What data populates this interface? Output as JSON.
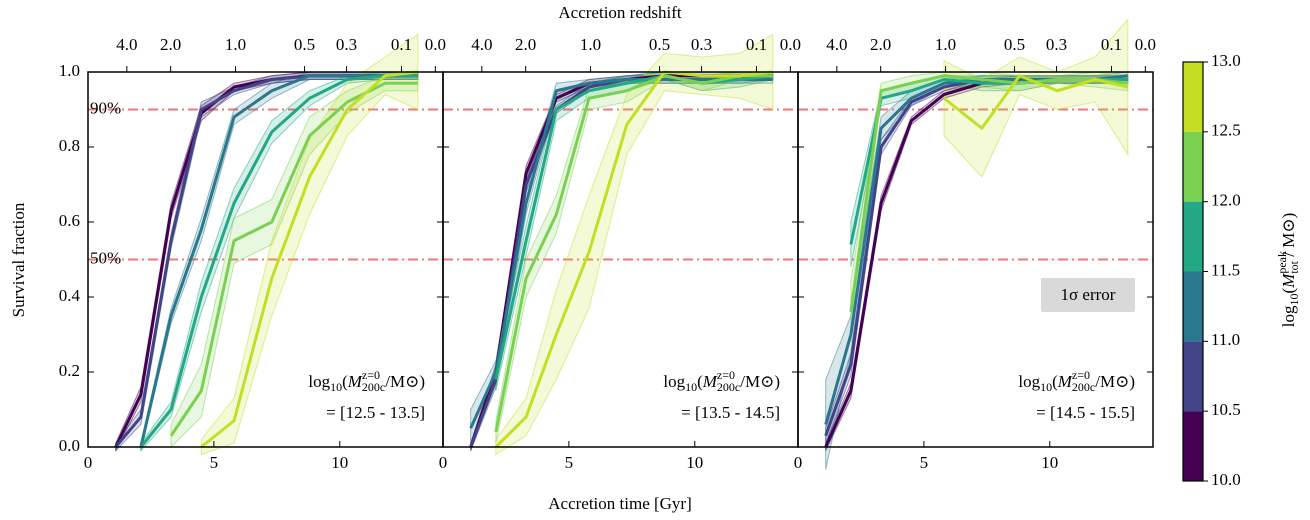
{
  "chart_data": [
    {
      "type": "line",
      "xlim": [
        0,
        14.1
      ],
      "ylim": [
        0,
        1
      ],
      "xticks": [
        0,
        5,
        10
      ],
      "yticks": [
        {
          "value": 0,
          "label": "0.0"
        },
        {
          "value": 0.2,
          "label": "0.2"
        },
        {
          "value": 0.4,
          "label": "0.4"
        },
        {
          "value": 0.6,
          "label": "0.6"
        },
        {
          "value": 0.8,
          "label": "0.8"
        },
        {
          "value": 1,
          "label": "1.0"
        }
      ],
      "x": [
        1.1,
        2.1,
        3.3,
        4.5,
        5.8,
        7.3,
        8.8,
        10.3,
        11.8,
        13.1
      ],
      "annotation": "= [12.5 - 13.5]",
      "series": [
        {
          "color": "#440154",
          "values": [
            0,
            0.14,
            0.63,
            0.89,
            0.96,
            0.98,
            0.99,
            0.99,
            0.99,
            0.99
          ],
          "error": [
            0.01,
            0.02,
            0.02,
            0.02,
            0.01,
            0.01,
            0.01,
            0.01,
            0.01,
            0.01
          ]
        },
        {
          "color": "#414487",
          "values": [
            0,
            0.08,
            0.55,
            0.9,
            0.95,
            0.98,
            0.99,
            0.99,
            0.99,
            0.99
          ],
          "error": [
            0.01,
            0.02,
            0.02,
            0.02,
            0.01,
            0.01,
            0.01,
            0.01,
            0.01,
            0.01
          ]
        },
        {
          "color": "#2a788e",
          "values": [
            null,
            0,
            0.35,
            0.58,
            0.88,
            0.95,
            0.99,
            0.99,
            0.99,
            0.99
          ],
          "error": [
            null,
            0.01,
            0.02,
            0.03,
            0.02,
            0.02,
            0.01,
            0.01,
            0.01,
            0.01
          ]
        },
        {
          "color": "#22a884",
          "values": [
            null,
            0,
            0.1,
            0.4,
            0.65,
            0.84,
            0.93,
            0.98,
            0.99,
            0.99
          ],
          "error": [
            null,
            0.01,
            0.02,
            0.04,
            0.04,
            0.03,
            0.02,
            0.01,
            0.01,
            0.01
          ]
        },
        {
          "color": "#7ad151",
          "values": [
            null,
            null,
            0.03,
            0.15,
            0.55,
            0.6,
            0.83,
            0.92,
            0.97,
            0.97
          ],
          "error": [
            null,
            null,
            0.03,
            0.07,
            0.06,
            0.06,
            0.05,
            0.03,
            0.02,
            0.02
          ]
        },
        {
          "color": "#c2df23",
          "values": [
            null,
            null,
            null,
            0,
            0.07,
            0.45,
            0.72,
            0.9,
            0.99,
            1
          ],
          "error": [
            null,
            null,
            null,
            0.02,
            0.06,
            0.1,
            0.1,
            0.07,
            0.05,
            0.1
          ]
        }
      ]
    },
    {
      "type": "line",
      "xlim": [
        0,
        14.1
      ],
      "ylim": [
        0,
        1
      ],
      "xticks": [
        0,
        5,
        10
      ],
      "x": [
        1.1,
        2.1,
        3.3,
        4.5,
        5.8,
        7.3,
        8.8,
        10.3,
        11.8,
        13.1
      ],
      "annotation": "= [13.5 - 14.5]",
      "series": [
        {
          "color": "#440154",
          "values": [
            0,
            0.2,
            0.73,
            0.93,
            0.97,
            0.98,
            0.99,
            0.99,
            0.99,
            0.99
          ],
          "error": [
            0.01,
            0.02,
            0.02,
            0.01,
            0.01,
            0.01,
            0.01,
            0.01,
            0.01,
            0.01
          ]
        },
        {
          "color": "#414487",
          "values": [
            0,
            0.18,
            0.7,
            0.9,
            0.96,
            0.98,
            0.98,
            0.98,
            0.98,
            0.99
          ],
          "error": [
            0.01,
            0.02,
            0.02,
            0.01,
            0.01,
            0.01,
            0.01,
            0.01,
            0.01,
            0.01
          ]
        },
        {
          "color": "#2a788e",
          "values": [
            0.05,
            0.2,
            0.65,
            0.95,
            0.97,
            0.98,
            0.98,
            0.98,
            0.98,
            0.98
          ],
          "error": [
            0.05,
            0.03,
            0.03,
            0.02,
            0.01,
            0.01,
            0.01,
            0.01,
            0.01,
            0.01
          ]
        },
        {
          "color": "#22a884",
          "values": [
            null,
            0.18,
            0.55,
            0.9,
            0.95,
            0.97,
            0.99,
            0.97,
            0.98,
            0.99
          ],
          "error": [
            null,
            0.03,
            0.04,
            0.03,
            0.02,
            0.02,
            0.01,
            0.02,
            0.02,
            0.01
          ]
        },
        {
          "color": "#7ad151",
          "values": [
            null,
            0.04,
            0.45,
            0.62,
            0.93,
            0.95,
            0.99,
            0.97,
            0.99,
            0.99
          ],
          "error": [
            null,
            0.03,
            0.05,
            0.05,
            0.03,
            0.03,
            0.01,
            0.02,
            0.01,
            0.01
          ]
        },
        {
          "color": "#c2df23",
          "values": [
            null,
            0,
            0.08,
            0.3,
            0.52,
            0.86,
            1,
            0.99,
            0.99,
            1
          ],
          "error": [
            null,
            0.02,
            0.05,
            0.12,
            0.15,
            0.08,
            0.05,
            0.05,
            0.06,
            0.1
          ]
        }
      ]
    },
    {
      "type": "line",
      "xlim": [
        0,
        14.1
      ],
      "ylim": [
        0,
        1
      ],
      "xticks": [
        0,
        5,
        10
      ],
      "x": [
        1.1,
        2.1,
        3.3,
        4.5,
        5.8,
        7.3,
        8.8,
        10.3,
        11.8,
        13.1
      ],
      "annotation": "= [14.5 - 15.5]",
      "series": [
        {
          "color": "#440154",
          "values": [
            0,
            0.15,
            0.65,
            0.87,
            0.94,
            0.97,
            0.98,
            0.98,
            0.98,
            0.98
          ],
          "error": [
            0.01,
            0.02,
            0.02,
            0.01,
            0.01,
            0.01,
            0.01,
            0.01,
            0.01,
            0.01
          ]
        },
        {
          "color": "#414487",
          "values": [
            0.03,
            0.22,
            0.8,
            0.92,
            0.96,
            0.98,
            0.98,
            0.98,
            0.98,
            0.98
          ],
          "error": [
            0.02,
            0.03,
            0.02,
            0.01,
            0.01,
            0.01,
            0.01,
            0.01,
            0.01,
            0.01
          ]
        },
        {
          "color": "#2a788e",
          "values": [
            0.06,
            0.3,
            0.85,
            0.93,
            0.97,
            0.98,
            0.98,
            0.98,
            0.98,
            0.99
          ],
          "error": [
            0.12,
            0.05,
            0.03,
            0.02,
            0.01,
            0.01,
            0.01,
            0.01,
            0.01,
            0.01
          ]
        },
        {
          "color": "#22a884",
          "values": [
            null,
            0.54,
            0.93,
            0.95,
            0.98,
            0.97,
            0.97,
            0.98,
            0.98,
            0.98
          ],
          "error": [
            null,
            0.06,
            0.02,
            0.02,
            0.01,
            0.02,
            0.02,
            0.01,
            0.01,
            0.01
          ]
        },
        {
          "color": "#7ad151",
          "values": [
            null,
            0.36,
            0.95,
            0.97,
            0.99,
            0.98,
            0.97,
            0.98,
            0.98,
            0.97
          ],
          "error": [
            null,
            0.08,
            0.02,
            0.02,
            0.01,
            0.02,
            0.02,
            0.01,
            0.02,
            0.02
          ]
        },
        {
          "color": "#c2df23",
          "values": [
            null,
            null,
            null,
            null,
            0.93,
            0.85,
            0.99,
            0.95,
            0.98,
            0.96
          ],
          "error": [
            null,
            null,
            null,
            null,
            0.1,
            0.13,
            0.05,
            0.05,
            0.06,
            0.18
          ]
        }
      ]
    }
  ],
  "xlabel": "Accretion time [Gyr]",
  "ylabel": "Survival fraction",
  "x2label": "Accretion redshift",
  "x2ticks": [
    {
      "value": 4,
      "label": "4.0"
    },
    {
      "value": 2,
      "label": "2.0"
    },
    {
      "value": 1,
      "label": "1.0"
    },
    {
      "value": 0.5,
      "label": "0.5"
    },
    {
      "value": 0.3,
      "label": "0.3"
    },
    {
      "value": 0.1,
      "label": "0.1"
    },
    {
      "value": 0,
      "label": "0.0"
    }
  ],
  "hlines": [
    {
      "value": 0.9,
      "label": "90%",
      "color": "#f26060"
    },
    {
      "value": 0.5,
      "label": "50%",
      "color": "#f26060"
    }
  ],
  "error_label": "1σ error",
  "mass_label": {
    "log": "log",
    "base": "10",
    "open": "(",
    "m": "M",
    "sup": "z=0",
    "sub": "200c",
    "close": "/M⊙)"
  },
  "colorbar": {
    "bins": [
      10,
      10.5,
      11,
      11.5,
      12,
      12.5,
      13
    ],
    "colors": [
      "#440154",
      "#414487",
      "#2a788e",
      "#22a884",
      "#7ad151",
      "#c2df23"
    ],
    "ticks": [
      {
        "value": 10,
        "label": "10.0"
      },
      {
        "value": 10.5,
        "label": "10.5"
      },
      {
        "value": 11,
        "label": "11.0"
      },
      {
        "value": 11.5,
        "label": "11.5"
      },
      {
        "value": 12,
        "label": "12.0"
      },
      {
        "value": 12.5,
        "label": "12.5"
      },
      {
        "value": 13,
        "label": "13.0"
      }
    ],
    "label": {
      "log": "log",
      "base": "10",
      "open": "(",
      "m": "M",
      "sup": "peak",
      "sub": "tot",
      "close": " / M⊙)"
    }
  }
}
